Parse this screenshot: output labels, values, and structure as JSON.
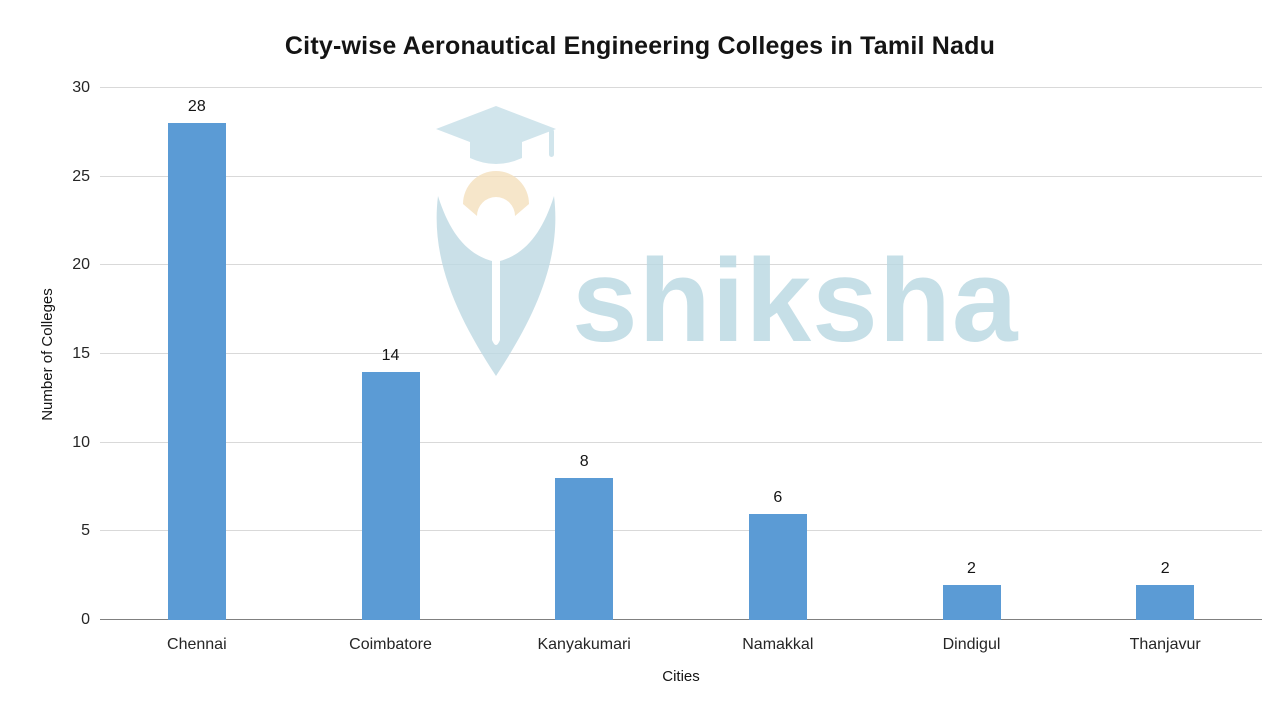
{
  "chart_data": {
    "type": "bar",
    "title": "City-wise Aeronautical Engineering Colleges in Tamil Nadu",
    "categories": [
      "Chennai",
      "Coimbatore",
      "Kanyakumari",
      "Namakkal",
      "Dindigul",
      "Thanjavur"
    ],
    "values": [
      28,
      14,
      8,
      6,
      2,
      2
    ],
    "data_labels": [
      "28",
      "14",
      "8",
      "6",
      "2",
      "2"
    ],
    "xlabel": "Cities",
    "ylabel": "Number of Colleges",
    "ylim": [
      0,
      30
    ],
    "ytick_step": 5,
    "yticks": [
      0,
      5,
      10,
      15,
      20,
      25,
      30
    ],
    "grid": true,
    "legend": "none",
    "bar_color": "#5B9BD5",
    "gridline_color": "#D9D9D9",
    "axis_line_color": "#808080",
    "text_color": "#262626"
  },
  "watermark": {
    "text": "shiksha",
    "icon": "shiksha-logo-icon",
    "color": "#B9D8E2",
    "accent_color": "#F5E0BD"
  }
}
